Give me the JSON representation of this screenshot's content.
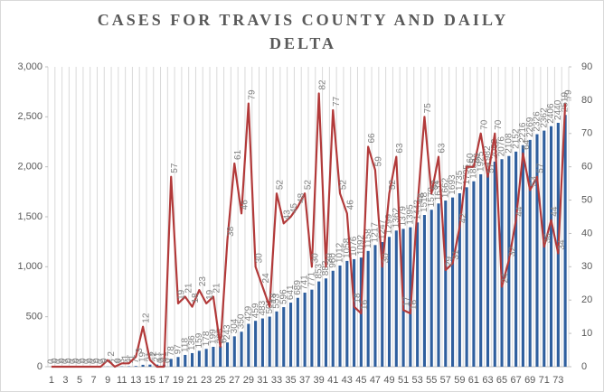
{
  "chart_data": {
    "type": "bar_line",
    "title": "CASES FOR TRAVIS COUNTY AND DAILY DELTA",
    "categories": [
      "1",
      null,
      "3",
      null,
      "5",
      null,
      "7",
      null,
      "9",
      null,
      "11",
      null,
      "13",
      null,
      "15",
      null,
      "17",
      null,
      "19",
      null,
      "21",
      null,
      "23",
      null,
      "25",
      null,
      "27",
      null,
      "29",
      null,
      "31",
      null,
      "33",
      null,
      "35",
      null,
      "37",
      null,
      "39",
      null,
      "41",
      null,
      "43",
      null,
      "45",
      null,
      "47",
      null,
      "49",
      null,
      "51",
      null,
      "53",
      null,
      "55",
      null,
      "57",
      null,
      "59",
      null,
      "61",
      null,
      "63",
      null,
      "65",
      null,
      "67",
      null,
      "69",
      null,
      "71",
      null,
      "73",
      null
    ],
    "series": [
      {
        "kind": "bar",
        "color": "#2f5f9e",
        "values": [
          0,
          0,
          0,
          0,
          0,
          0,
          0,
          0,
          2,
          2,
          3,
          4,
          7,
          19,
          21,
          21,
          21,
          78,
          97,
          118,
          136,
          159,
          178,
          199,
          205,
          243,
          304,
          350,
          429,
          459,
          483,
          501,
          553,
          596,
          641,
          689,
          741,
          771,
          853,
          883,
          960,
          1012,
          1058,
          1076,
          1092,
          1158,
          1217,
          1247,
          1299,
          1362,
          1379,
          1395,
          1443,
          1518,
          1570,
          1633,
          1662,
          1693,
          1735,
          1795,
          1855,
          1925,
          1982,
          2052,
          2076,
          2108,
          2152,
          2216,
          2269,
          2326,
          2362,
          2406,
          2440,
          2519
        ]
      },
      {
        "kind": "line",
        "axis": "y2",
        "color": "#b23a3a",
        "values": [
          0,
          0,
          0,
          0,
          0,
          0,
          0,
          0,
          2,
          0,
          1,
          1,
          3,
          12,
          2,
          0,
          0,
          57,
          19,
          21,
          18,
          23,
          19,
          21,
          6,
          38,
          61,
          46,
          79,
          30,
          24,
          18,
          52,
          43,
          45,
          48,
          52,
          30,
          82,
          30,
          77,
          52,
          46,
          18,
          16,
          66,
          59,
          30,
          52,
          63,
          17,
          16,
          48,
          75,
          52,
          63,
          29,
          31,
          42,
          60,
          60,
          70,
          57,
          70,
          24,
          32,
          44,
          64,
          53,
          57,
          36,
          44,
          34,
          79
        ]
      }
    ],
    "ylim": [
      0,
      3000
    ],
    "yticks": [
      0,
      {
        "value": 500,
        "label": "500"
      },
      {
        "value": 1000,
        "label": "1,000"
      },
      {
        "value": 1500,
        "label": "1,500"
      },
      {
        "value": 2000,
        "label": "2,000"
      },
      {
        "value": 2500,
        "label": "2,500"
      },
      {
        "value": 3000,
        "label": "3,000"
      }
    ],
    "y2lim": [
      0,
      90
    ],
    "y2ticks": [
      0,
      10,
      20,
      30,
      40,
      50,
      60,
      70,
      80,
      90
    ],
    "xgrid": true,
    "data_labels": true
  }
}
